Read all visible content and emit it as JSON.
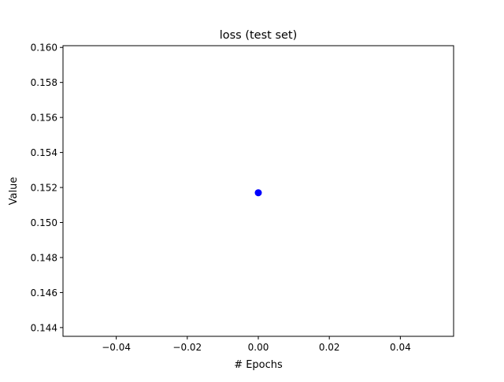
{
  "chart_data": {
    "type": "scatter",
    "title": "loss (test set)",
    "xlabel": "# Epochs",
    "ylabel": "Value",
    "xlim": [
      -0.055,
      0.055
    ],
    "ylim": [
      0.1435,
      0.1601
    ],
    "xticks": [
      -0.04,
      -0.02,
      0.0,
      0.02,
      0.04
    ],
    "xtick_labels": [
      "−0.04",
      "−0.02",
      "0.00",
      "0.02",
      "0.04"
    ],
    "yticks": [
      0.144,
      0.146,
      0.148,
      0.15,
      0.152,
      0.154,
      0.156,
      0.158,
      0.16
    ],
    "ytick_labels": [
      "0.144",
      "0.146",
      "0.148",
      "0.150",
      "0.152",
      "0.154",
      "0.156",
      "0.158",
      "0.160"
    ],
    "grid": false,
    "series": [
      {
        "color": "#0000ff",
        "points": [
          {
            "x": 0.0,
            "y": 0.1517
          }
        ]
      }
    ]
  }
}
